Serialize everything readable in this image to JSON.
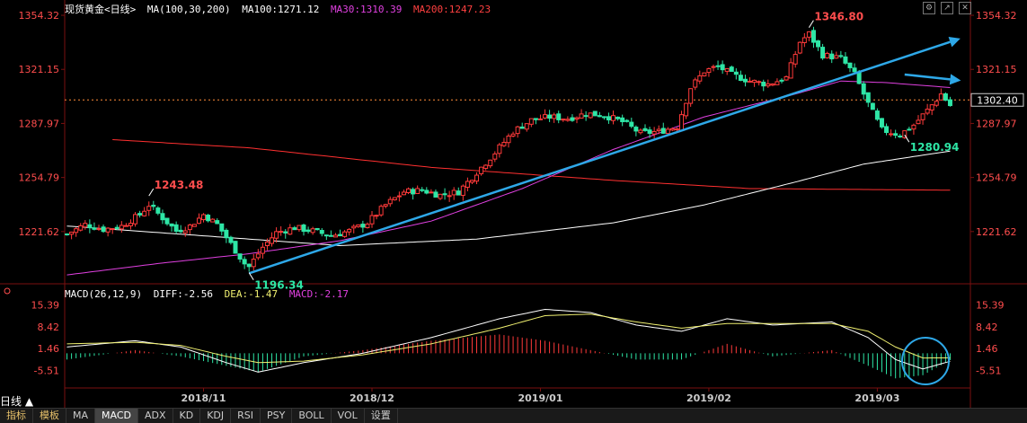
{
  "header": {
    "title": "现货黄金<日线>",
    "ma_label": "MA(100,30,200)",
    "ma100": "MA100:1271.12",
    "ma30": "MA30:1310.39",
    "ma200": "MA200:1247.23"
  },
  "macd_header": {
    "label": "MACD(26,12,9)",
    "diff": "DIFF:-2.56",
    "dea": "DEA:-1.47",
    "macd": "MACD:-2.17"
  },
  "period_button": "日线 ▲",
  "tabs": [
    {
      "label": "指标",
      "cn": true
    },
    {
      "label": "模板",
      "cn": true
    },
    {
      "label": "MA"
    },
    {
      "label": "MACD",
      "active": true
    },
    {
      "label": "ADX"
    },
    {
      "label": "KD"
    },
    {
      "label": "KDJ"
    },
    {
      "label": "RSI"
    },
    {
      "label": "PSY"
    },
    {
      "label": "BOLL"
    },
    {
      "label": "VOL"
    },
    {
      "label": "设置"
    }
  ],
  "colors": {
    "up": "#ff3a3a",
    "down": "#2ee6a6",
    "ma100": "#ffffff",
    "ma30": "#e040e0",
    "ma200": "#ff3030",
    "trend": "#2ea8e8",
    "grid": "#7a1010",
    "axis_text": "#ff4d4d",
    "diff": "#ffffff",
    "dea": "#f0f070"
  },
  "chart_data": {
    "type": "candlestick",
    "price_axis": {
      "ticks": [
        1354.32,
        1321.15,
        1287.97,
        1254.79,
        1221.62
      ],
      "range": [
        1188.45,
        1356
      ]
    },
    "macd_axis": {
      "ticks": [
        15.39,
        8.42,
        1.46,
        -5.51
      ],
      "range": [
        -10.5,
        17
      ]
    },
    "last_price": 1302.4,
    "annotations": [
      {
        "label": "1243.48",
        "index": 18,
        "value": 1243.48,
        "color": "#ff4d4d"
      },
      {
        "label": "1196.34",
        "index": 40,
        "value": 1196.34,
        "color": "#2ee6a6"
      },
      {
        "label": "1346.80",
        "index": 163,
        "value": 1346.8,
        "color": "#ff4d4d"
      },
      {
        "label": "1280.94",
        "index": 184,
        "value": 1280.94,
        "color": "#2ee6a6"
      }
    ],
    "x_labels": [
      {
        "label": "2018/11",
        "index": 30
      },
      {
        "label": "2018/12",
        "index": 67
      },
      {
        "label": "2019/01",
        "index": 104
      },
      {
        "label": "2019/02",
        "index": 141
      },
      {
        "label": "2019/03",
        "index": 178
      }
    ],
    "n": 195,
    "anchors": [
      [
        0,
        1220
      ],
      [
        4,
        1226
      ],
      [
        8,
        1223
      ],
      [
        12,
        1225
      ],
      [
        16,
        1232
      ],
      [
        18,
        1238
      ],
      [
        21,
        1230
      ],
      [
        24,
        1222
      ],
      [
        27,
        1225
      ],
      [
        30,
        1232
      ],
      [
        33,
        1226
      ],
      [
        36,
        1214
      ],
      [
        39,
        1202
      ],
      [
        40,
        1200
      ],
      [
        43,
        1212
      ],
      [
        46,
        1221
      ],
      [
        50,
        1224
      ],
      [
        54,
        1222
      ],
      [
        58,
        1219
      ],
      [
        62,
        1222
      ],
      [
        66,
        1227
      ],
      [
        70,
        1238
      ],
      [
        74,
        1246
      ],
      [
        78,
        1247
      ],
      [
        82,
        1244
      ],
      [
        86,
        1246
      ],
      [
        90,
        1258
      ],
      [
        94,
        1270
      ],
      [
        98,
        1283
      ],
      [
        102,
        1290
      ],
      [
        106,
        1292
      ],
      [
        110,
        1291
      ],
      [
        114,
        1294
      ],
      [
        118,
        1293
      ],
      [
        122,
        1289
      ],
      [
        126,
        1282
      ],
      [
        130,
        1283
      ],
      [
        134,
        1286
      ],
      [
        137,
        1310
      ],
      [
        140,
        1320
      ],
      [
        143,
        1323
      ],
      [
        146,
        1318
      ],
      [
        150,
        1314
      ],
      [
        154,
        1312
      ],
      [
        158,
        1316
      ],
      [
        161,
        1338
      ],
      [
        163,
        1343
      ],
      [
        166,
        1330
      ],
      [
        170,
        1328
      ],
      [
        173,
        1318
      ],
      [
        176,
        1300
      ],
      [
        179,
        1284
      ],
      [
        183,
        1281
      ],
      [
        186,
        1287
      ],
      [
        189,
        1296
      ],
      [
        192,
        1306
      ],
      [
        194,
        1299
      ]
    ],
    "ma30_anchors": [
      [
        0,
        1195
      ],
      [
        20,
        1202
      ],
      [
        40,
        1208
      ],
      [
        60,
        1216
      ],
      [
        80,
        1228
      ],
      [
        100,
        1248
      ],
      [
        120,
        1272
      ],
      [
        140,
        1292
      ],
      [
        160,
        1306
      ],
      [
        170,
        1314
      ],
      [
        180,
        1313
      ],
      [
        194,
        1310
      ]
    ],
    "ma100_anchors": [
      [
        0,
        1225
      ],
      [
        30,
        1219
      ],
      [
        60,
        1213
      ],
      [
        90,
        1217
      ],
      [
        120,
        1227
      ],
      [
        140,
        1238
      ],
      [
        160,
        1252
      ],
      [
        175,
        1263
      ],
      [
        194,
        1271
      ]
    ],
    "ma200_anchors": [
      [
        10,
        1278
      ],
      [
        40,
        1273
      ],
      [
        80,
        1261
      ],
      [
        120,
        1253
      ],
      [
        150,
        1248
      ],
      [
        194,
        1247
      ]
    ],
    "trend_lines": [
      {
        "from": [
          40,
          1196
        ],
        "to": [
          194,
          1338
        ],
        "arrow": true
      },
      {
        "from": [
          184,
          1318
        ],
        "to": [
          194,
          1315
        ],
        "arrow": true
      }
    ],
    "diff_anchors": [
      [
        0,
        2
      ],
      [
        15,
        4
      ],
      [
        25,
        2
      ],
      [
        35,
        -3
      ],
      [
        42,
        -6
      ],
      [
        52,
        -3
      ],
      [
        65,
        0
      ],
      [
        80,
        5
      ],
      [
        95,
        11
      ],
      [
        105,
        14
      ],
      [
        115,
        13
      ],
      [
        125,
        9
      ],
      [
        135,
        7
      ],
      [
        145,
        11
      ],
      [
        155,
        9
      ],
      [
        168,
        10
      ],
      [
        176,
        5
      ],
      [
        182,
        -2
      ],
      [
        188,
        -5
      ],
      [
        194,
        -2.56
      ]
    ],
    "dea_anchors": [
      [
        0,
        3
      ],
      [
        15,
        3.5
      ],
      [
        25,
        2.5
      ],
      [
        35,
        -1
      ],
      [
        42,
        -3
      ],
      [
        52,
        -2.5
      ],
      [
        65,
        -0.5
      ],
      [
        80,
        3
      ],
      [
        95,
        8
      ],
      [
        105,
        12
      ],
      [
        115,
        12.5
      ],
      [
        125,
        10
      ],
      [
        135,
        8
      ],
      [
        145,
        9.5
      ],
      [
        155,
        9.5
      ],
      [
        168,
        9.5
      ],
      [
        176,
        7
      ],
      [
        182,
        2
      ],
      [
        188,
        -1.5
      ],
      [
        194,
        -1.47
      ]
    ]
  }
}
